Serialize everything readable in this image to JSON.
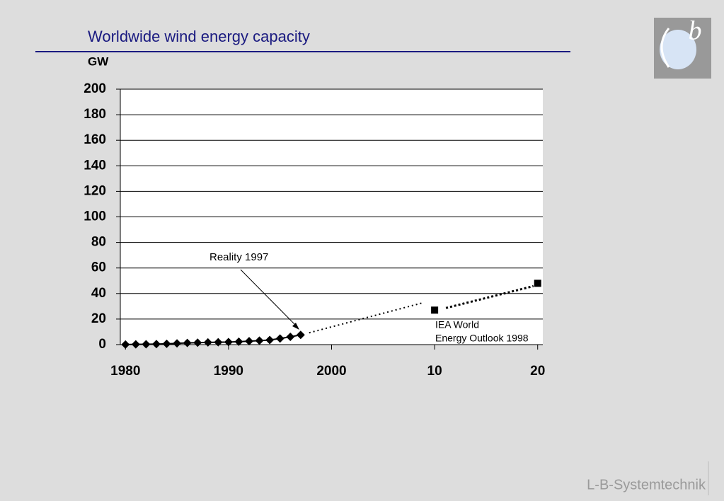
{
  "chart_data": {
    "type": "line",
    "title": "Worldwide wind energy capacity",
    "y_label": "GW",
    "xlim": [
      1979.5,
      2020.5
    ],
    "xticks": [
      1980,
      1990,
      2000,
      {
        "value": 2010,
        "label": "10"
      },
      {
        "value": 2020,
        "label": "20"
      }
    ],
    "ylim": [
      0,
      200
    ],
    "yticks": [
      0,
      20,
      40,
      60,
      80,
      100,
      120,
      140,
      160,
      180,
      200
    ],
    "grid": true,
    "series": [
      {
        "marker": "diamond",
        "color": "#000000",
        "x": [
          1980,
          1981,
          1982,
          1983,
          1984,
          1985,
          1986,
          1987,
          1988,
          1989,
          1990,
          1991,
          1992,
          1993,
          1994,
          1995,
          1996,
          1997
        ],
        "values": [
          0.1,
          0.2,
          0.3,
          0.4,
          0.6,
          1.0,
          1.3,
          1.5,
          1.7,
          1.9,
          2.0,
          2.3,
          2.7,
          3.1,
          3.6,
          4.8,
          6.1,
          7.6
        ]
      },
      {
        "marker": "square",
        "color": "#000000",
        "x": [
          2010,
          2020
        ],
        "values": [
          27,
          48
        ]
      }
    ],
    "annotations": [
      {
        "text": [
          "Reality 1997"
        ]
      },
      {
        "text": [
          "IEA World",
          "Energy Outlook 1998"
        ]
      }
    ]
  },
  "logo_text": "b",
  "footer": "L-B-Systemtechnik"
}
